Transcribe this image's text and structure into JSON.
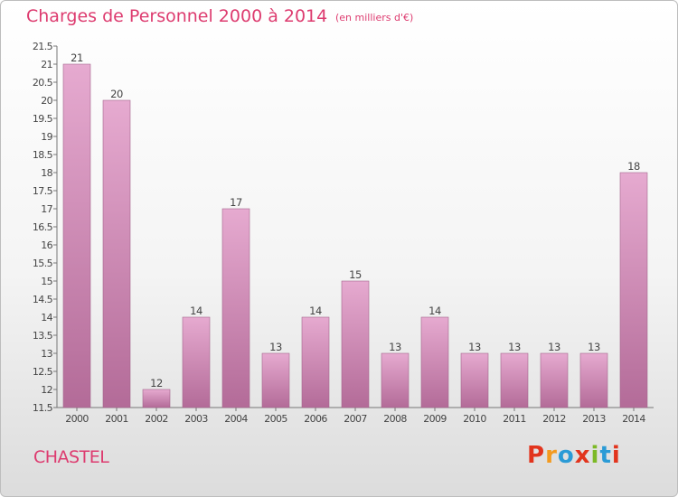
{
  "header": {
    "title": "Charges de Personnel 2000 à 2014",
    "subtitle": "(en milliers d'€)"
  },
  "footer": {
    "commune": "CHASTEL",
    "brand_letters": [
      "P",
      "r",
      "o",
      "x",
      "i",
      "t",
      "i"
    ],
    "brand_colors": [
      "#e2341d",
      "#f39a1f",
      "#2b9bd6",
      "#e2341d",
      "#7cb926",
      "#2b9bd6",
      "#e2341d"
    ]
  },
  "colors": {
    "bar_top": "#e6aad0",
    "bar_bottom": "#b36b98",
    "bar_stroke": "#a4668d",
    "accent": "#dd3b6f"
  },
  "chart_data": {
    "type": "bar",
    "title": "Charges de Personnel 2000 à 2014",
    "subtitle": "(en milliers d'€)",
    "xlabel": "",
    "ylabel": "",
    "categories": [
      "2000",
      "2001",
      "2002",
      "2003",
      "2004",
      "2005",
      "2006",
      "2007",
      "2008",
      "2009",
      "2010",
      "2011",
      "2012",
      "2013",
      "2014"
    ],
    "values": [
      21,
      20,
      12,
      14,
      17,
      13,
      14,
      15,
      13,
      14,
      13,
      13,
      13,
      13,
      18
    ],
    "ylim": [
      11.5,
      21.5
    ],
    "yticks": [
      "11.5",
      "12",
      "12.5",
      "13",
      "13.5",
      "14",
      "14.5",
      "15",
      "15.5",
      "16",
      "16.5",
      "17",
      "17.5",
      "18",
      "18.5",
      "19",
      "19.5",
      "20",
      "20.5",
      "21",
      "21.5"
    ],
    "grid": false,
    "legend": "none"
  }
}
